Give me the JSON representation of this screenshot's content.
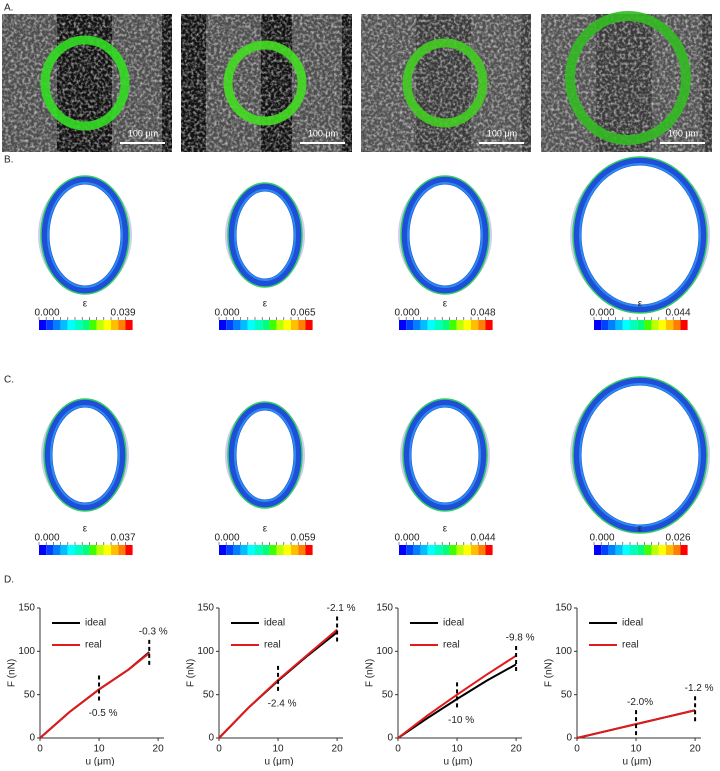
{
  "panel_labels": [
    "A.",
    "B.",
    "C.",
    "D."
  ],
  "images": {
    "scale_bar": "100 μm"
  },
  "strain_maps": {
    "symbol": "ε",
    "rows": [
      [
        {
          "min": "0.000",
          "max": "0.039"
        },
        {
          "min": "0.000",
          "max": "0.065"
        },
        {
          "min": "0.000",
          "max": "0.048"
        },
        {
          "min": "0.000",
          "max": "0.044"
        }
      ],
      [
        {
          "min": "0.000",
          "max": "0.037"
        },
        {
          "min": "0.000",
          "max": "0.059"
        },
        {
          "min": "0.000",
          "max": "0.044"
        },
        {
          "min": "0.000",
          "max": "0.026"
        }
      ]
    ]
  },
  "chart_data": [
    {
      "type": "line",
      "xlabel": "u (μm)",
      "ylabel": "F (nN)",
      "x": [
        0,
        5,
        10,
        15,
        18.5
      ],
      "series": [
        {
          "name": "ideal",
          "color": "#000000",
          "values": [
            0,
            30,
            56,
            79,
            99
          ]
        },
        {
          "name": "real",
          "color": "#e31a1c",
          "values": [
            0,
            30,
            56,
            79,
            98
          ]
        }
      ],
      "xlim": [
        0,
        21
      ],
      "ylim": [
        0,
        150
      ],
      "xticks": [
        0,
        10,
        20
      ],
      "yticks": [
        0,
        50,
        100,
        150
      ],
      "annotations": [
        {
          "text": "-0.5 %",
          "x": 10,
          "y": 56,
          "placement": "below"
        },
        {
          "text": "-0.3 %",
          "x": 18.5,
          "y": 97,
          "placement": "above"
        }
      ]
    },
    {
      "type": "line",
      "xlabel": "u (μm)",
      "ylabel": "F (nN)",
      "x": [
        0,
        5,
        10,
        15,
        20
      ],
      "series": [
        {
          "name": "ideal",
          "color": "#000000",
          "values": [
            0,
            35,
            66,
            95,
            122
          ]
        },
        {
          "name": "real",
          "color": "#e31a1c",
          "values": [
            0,
            35,
            67,
            96,
            125
          ]
        }
      ],
      "xlim": [
        0,
        21
      ],
      "ylim": [
        0,
        150
      ],
      "xticks": [
        0,
        10,
        20
      ],
      "yticks": [
        0,
        50,
        100,
        150
      ],
      "annotations": [
        {
          "text": "-2.4 %",
          "x": 10,
          "y": 67,
          "placement": "below"
        },
        {
          "text": "-2.1 %",
          "x": 20,
          "y": 124,
          "placement": "above"
        }
      ]
    },
    {
      "type": "line",
      "xlabel": "u (μm)",
      "ylabel": "F (nN)",
      "x": [
        0,
        5,
        10,
        15,
        20
      ],
      "series": [
        {
          "name": "ideal",
          "color": "#000000",
          "values": [
            0,
            23,
            45,
            66,
            85
          ]
        },
        {
          "name": "real",
          "color": "#e31a1c",
          "values": [
            0,
            26,
            50,
            73,
            95
          ]
        }
      ],
      "xlim": [
        0,
        21
      ],
      "ylim": [
        0,
        150
      ],
      "xticks": [
        0,
        10,
        20
      ],
      "yticks": [
        0,
        50,
        100,
        150
      ],
      "annotations": [
        {
          "text": "-10 %",
          "x": 10,
          "y": 48,
          "placement": "below"
        },
        {
          "text": "-9.8 %",
          "x": 20,
          "y": 90,
          "placement": "above"
        }
      ]
    },
    {
      "type": "line",
      "xlabel": "u (μm)",
      "ylabel": "F (nN)",
      "x": [
        0,
        5,
        10,
        15,
        20
      ],
      "series": [
        {
          "name": "ideal",
          "color": "#000000",
          "values": [
            0,
            8,
            16,
            24,
            32
          ]
        },
        {
          "name": "real",
          "color": "#e31a1c",
          "values": [
            0,
            8,
            16,
            24,
            32
          ]
        }
      ],
      "xlim": [
        0,
        21
      ],
      "ylim": [
        0,
        150
      ],
      "xticks": [
        0,
        10,
        20
      ],
      "yticks": [
        0,
        50,
        100,
        150
      ],
      "annotations": [
        {
          "text": "-2.0%",
          "x": 10,
          "y": 16,
          "placement": "above"
        },
        {
          "text": "-1.2 %",
          "x": 20,
          "y": 32,
          "placement": "above"
        }
      ]
    }
  ]
}
